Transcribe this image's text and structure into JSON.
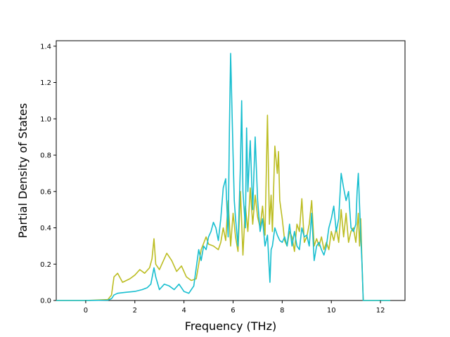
{
  "chart_data": {
    "type": "line",
    "title": "",
    "xlabel": "Frequency (THz)",
    "ylabel": "Partial Density of States",
    "xlim": [
      -1.2,
      13.0
    ],
    "ylim": [
      0.0,
      1.43
    ],
    "xticks": [
      0,
      2,
      4,
      6,
      8,
      10,
      12
    ],
    "yticks": [
      0.0,
      0.2,
      0.4,
      0.6,
      0.8,
      1.0,
      1.2,
      1.4
    ],
    "xtick_labels": [
      "0",
      "2",
      "4",
      "6",
      "8",
      "10",
      "12"
    ],
    "ytick_labels": [
      "0.0",
      "0.2",
      "0.4",
      "0.6",
      "0.8",
      "1.0",
      "1.2",
      "1.4"
    ],
    "grid": false,
    "legend": "none",
    "series": [
      {
        "color": "#bcbd22",
        "x": [
          -1.2,
          0.0,
          0.9,
          1.05,
          1.15,
          1.3,
          1.5,
          1.8,
          2.0,
          2.2,
          2.4,
          2.6,
          2.7,
          2.78,
          2.85,
          3.0,
          3.3,
          3.5,
          3.7,
          3.9,
          4.1,
          4.3,
          4.5,
          4.7,
          4.9,
          5.0,
          5.2,
          5.4,
          5.5,
          5.6,
          5.7,
          5.8,
          5.9,
          6.0,
          6.1,
          6.2,
          6.3,
          6.4,
          6.5,
          6.6,
          6.7,
          6.8,
          6.9,
          7.0,
          7.1,
          7.2,
          7.3,
          7.4,
          7.48,
          7.55,
          7.6,
          7.7,
          7.8,
          7.85,
          7.9,
          8.0,
          8.1,
          8.2,
          8.3,
          8.4,
          8.5,
          8.6,
          8.7,
          8.8,
          8.9,
          9.0,
          9.1,
          9.2,
          9.3,
          9.4,
          9.5,
          9.6,
          9.7,
          9.8,
          9.9,
          10.0,
          10.1,
          10.2,
          10.3,
          10.4,
          10.5,
          10.6,
          10.7,
          10.8,
          10.9,
          11.0,
          11.1,
          11.15,
          11.2,
          11.25,
          11.3,
          11.35,
          12.4
        ],
        "values": [
          0.0,
          0.0,
          0.005,
          0.03,
          0.13,
          0.15,
          0.1,
          0.12,
          0.14,
          0.17,
          0.15,
          0.18,
          0.23,
          0.34,
          0.2,
          0.17,
          0.26,
          0.22,
          0.16,
          0.19,
          0.13,
          0.11,
          0.12,
          0.28,
          0.35,
          0.31,
          0.3,
          0.28,
          0.32,
          0.4,
          0.33,
          0.55,
          0.3,
          0.48,
          0.35,
          0.27,
          0.6,
          0.25,
          0.52,
          0.38,
          0.62,
          0.42,
          0.58,
          0.46,
          0.4,
          0.52,
          0.36,
          1.02,
          0.42,
          0.58,
          0.38,
          0.85,
          0.7,
          0.82,
          0.55,
          0.45,
          0.33,
          0.3,
          0.38,
          0.35,
          0.27,
          0.42,
          0.38,
          0.56,
          0.32,
          0.35,
          0.42,
          0.55,
          0.3,
          0.34,
          0.3,
          0.35,
          0.28,
          0.32,
          0.28,
          0.38,
          0.33,
          0.4,
          0.32,
          0.5,
          0.35,
          0.48,
          0.32,
          0.38,
          0.4,
          0.32,
          0.48,
          0.3,
          0.45,
          0.2,
          0.0,
          0.0,
          0.0
        ]
      },
      {
        "color": "#17becf",
        "x": [
          -1.2,
          0.0,
          0.9,
          1.05,
          1.15,
          1.3,
          1.6,
          2.0,
          2.3,
          2.5,
          2.65,
          2.78,
          2.85,
          3.0,
          3.2,
          3.4,
          3.6,
          3.8,
          4.0,
          4.2,
          4.4,
          4.6,
          4.7,
          4.8,
          4.9,
          5.0,
          5.1,
          5.2,
          5.3,
          5.4,
          5.5,
          5.6,
          5.7,
          5.8,
          5.85,
          5.9,
          6.0,
          6.05,
          6.1,
          6.2,
          6.3,
          6.35,
          6.4,
          6.5,
          6.55,
          6.6,
          6.7,
          6.8,
          6.9,
          7.0,
          7.1,
          7.2,
          7.3,
          7.4,
          7.5,
          7.55,
          7.6,
          7.7,
          7.8,
          7.9,
          8.0,
          8.1,
          8.2,
          8.3,
          8.4,
          8.5,
          8.6,
          8.7,
          8.8,
          8.9,
          9.0,
          9.1,
          9.2,
          9.3,
          9.4,
          9.5,
          9.6,
          9.7,
          9.8,
          9.9,
          10.0,
          10.1,
          10.2,
          10.3,
          10.4,
          10.5,
          10.6,
          10.7,
          10.8,
          10.9,
          11.0,
          11.05,
          11.1,
          11.2,
          11.25,
          11.3,
          11.35,
          12.4
        ],
        "values": [
          0.0,
          0.0,
          0.002,
          0.01,
          0.03,
          0.04,
          0.045,
          0.05,
          0.06,
          0.07,
          0.09,
          0.18,
          0.13,
          0.06,
          0.09,
          0.08,
          0.06,
          0.09,
          0.05,
          0.04,
          0.08,
          0.28,
          0.22,
          0.3,
          0.28,
          0.35,
          0.38,
          0.43,
          0.4,
          0.33,
          0.45,
          0.62,
          0.67,
          0.35,
          0.95,
          1.36,
          0.8,
          0.55,
          0.45,
          0.3,
          0.75,
          1.1,
          0.6,
          0.4,
          0.95,
          0.6,
          0.88,
          0.5,
          0.9,
          0.55,
          0.38,
          0.45,
          0.3,
          0.36,
          0.1,
          0.28,
          0.3,
          0.4,
          0.36,
          0.33,
          0.32,
          0.35,
          0.3,
          0.42,
          0.3,
          0.38,
          0.3,
          0.28,
          0.4,
          0.35,
          0.36,
          0.3,
          0.48,
          0.22,
          0.3,
          0.32,
          0.28,
          0.25,
          0.3,
          0.4,
          0.45,
          0.52,
          0.38,
          0.45,
          0.7,
          0.62,
          0.55,
          0.6,
          0.4,
          0.38,
          0.42,
          0.6,
          0.7,
          0.35,
          0.2,
          0.0,
          0.0,
          0.0
        ]
      }
    ]
  }
}
